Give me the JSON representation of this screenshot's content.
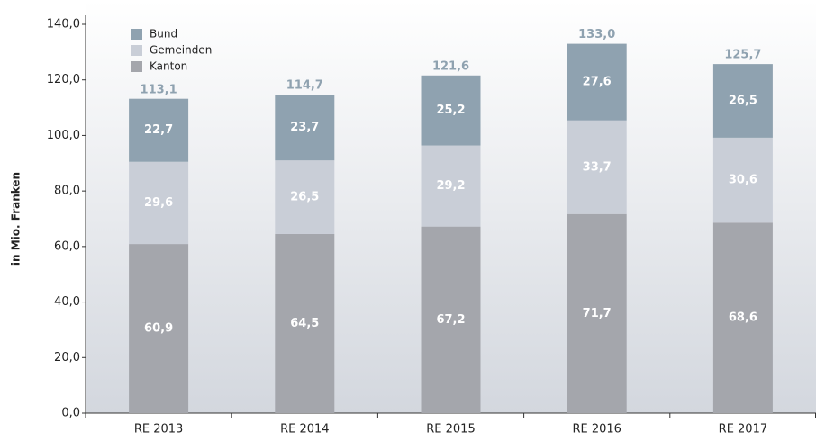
{
  "chart_data": {
    "type": "stacked_bar",
    "y_label": "in Mio. Franken",
    "categories": [
      "RE 2013",
      "RE 2014",
      "RE 2015",
      "RE 2016",
      "RE 2017"
    ],
    "series": [
      {
        "name": "Kanton",
        "color": "#a4a6ac",
        "values": [
          60.9,
          64.5,
          67.2,
          71.7,
          68.6
        ],
        "value_labels": [
          "60,9",
          "64,5",
          "67,2",
          "71,7",
          "68,6"
        ]
      },
      {
        "name": "Gemeinden",
        "color": "#c9ced7",
        "values": [
          29.6,
          26.5,
          29.2,
          33.7,
          30.6
        ],
        "value_labels": [
          "29,6",
          "26,5",
          "29,2",
          "33,7",
          "30,6"
        ]
      },
      {
        "name": "Bund",
        "color": "#8fa2b0",
        "values": [
          22.7,
          23.7,
          25.2,
          27.6,
          26.5
        ],
        "value_labels": [
          "22,7",
          "23,7",
          "25,2",
          "27,6",
          "26,5"
        ]
      }
    ],
    "totals": {
      "color": "#8fa2b0",
      "values": [
        113.1,
        114.7,
        121.6,
        133.0,
        125.7
      ],
      "value_labels": [
        "113,1",
        "114,7",
        "121,6",
        "133,0",
        "125,7"
      ]
    },
    "ylim": [
      0,
      140
    ],
    "yticks": [
      {
        "value": 0,
        "label": "0,0"
      },
      {
        "value": 20,
        "label": "20,0"
      },
      {
        "value": 40,
        "label": "40,0"
      },
      {
        "value": 60,
        "label": "60,0"
      },
      {
        "value": 80,
        "label": "80,0"
      },
      {
        "value": 100,
        "label": "100,0"
      },
      {
        "value": 120,
        "label": "120,0"
      },
      {
        "value": 140,
        "label": "140,0"
      }
    ],
    "legend": "top-left"
  }
}
